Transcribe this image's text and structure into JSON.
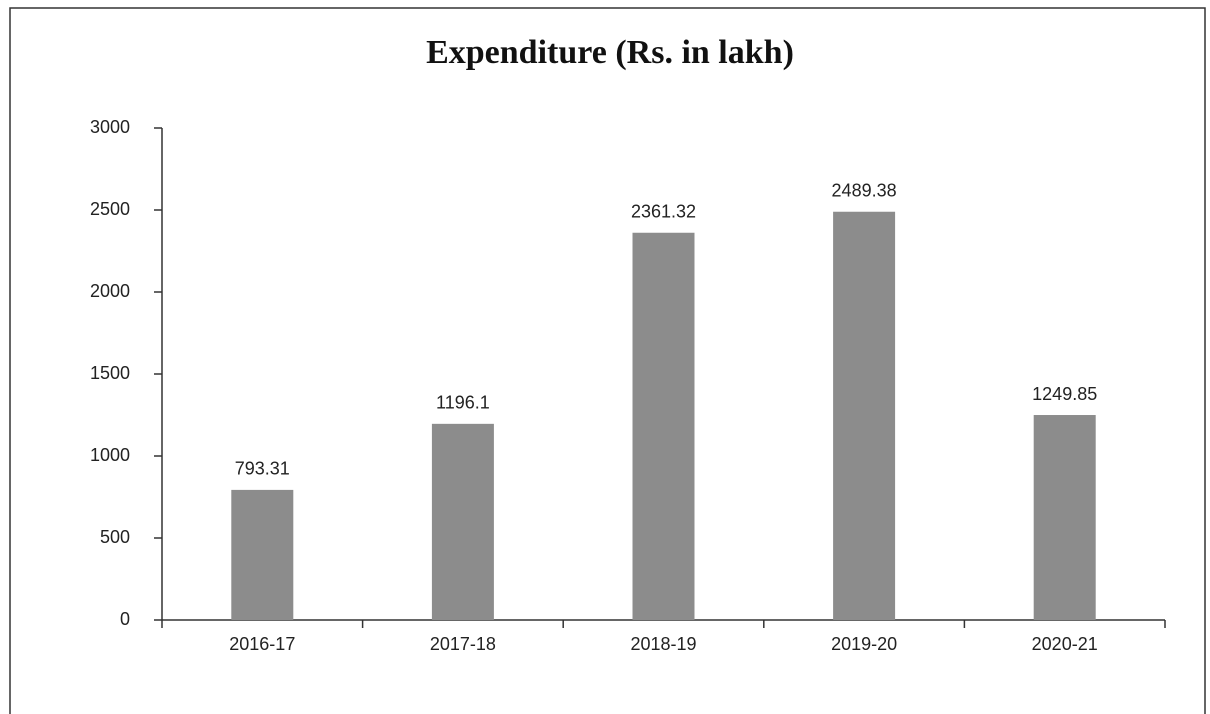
{
  "chart_data": {
    "type": "bar",
    "title": "Expenditure (Rs. in lakh)",
    "categories": [
      "2016-17",
      "2017-18",
      "2018-19",
      "2019-20",
      "2020-21"
    ],
    "values": [
      793.31,
      1196.1,
      2361.32,
      2489.38,
      1249.85
    ],
    "color": "#8c8c8c",
    "ylim": [
      0,
      3000
    ],
    "yticks": [
      0,
      500,
      1000,
      1500,
      2000,
      2500,
      3000
    ],
    "grid": false
  }
}
